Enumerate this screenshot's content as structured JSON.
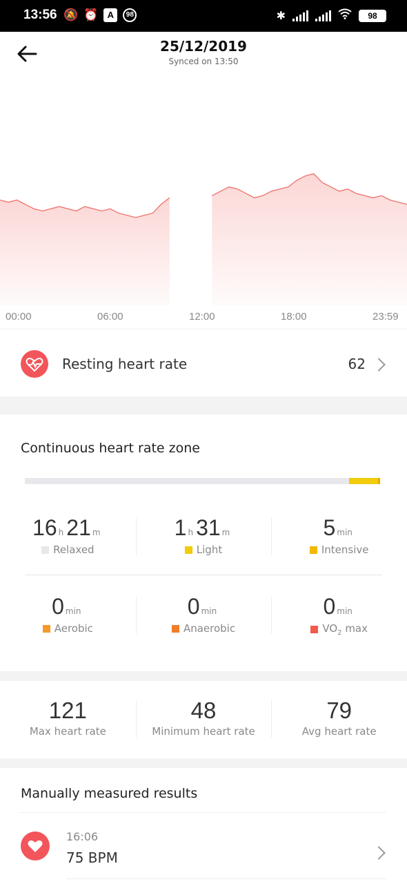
{
  "status_bar": {
    "time": "13:56",
    "notif_badge": "98",
    "battery": "98"
  },
  "header": {
    "title": "25/12/2019",
    "subtitle": "Synced on 13:50"
  },
  "chart_data": {
    "type": "area",
    "x_tick_labels": [
      "00:00",
      "06:00",
      "12:00",
      "18:00",
      "23:59"
    ],
    "color": "#f0706a",
    "x": [
      "00:00",
      "00:30",
      "01:00",
      "01:30",
      "02:00",
      "02:30",
      "03:00",
      "03:30",
      "04:00",
      "04:30",
      "05:00",
      "05:30",
      "06:00",
      "06:30",
      "07:00",
      "07:30",
      "08:00",
      "08:30",
      "09:00",
      "09:30",
      "10:00",
      "10:30",
      "11:00",
      "11:30",
      "12:00",
      "12:30",
      "13:00",
      "13:30",
      "14:00",
      "14:30",
      "15:00",
      "15:30",
      "16:00",
      "16:30",
      "17:00",
      "17:30",
      "18:00",
      "18:30",
      "19:00",
      "19:30",
      "20:00",
      "20:30",
      "21:00",
      "21:30",
      "22:00",
      "22:30",
      "23:00",
      "23:30",
      "23:59"
    ],
    "values": [
      78,
      77,
      78,
      76,
      74,
      73,
      74,
      75,
      74,
      73,
      75,
      74,
      73,
      74,
      72,
      71,
      70,
      71,
      72,
      76,
      79,
      null,
      null,
      null,
      null,
      80,
      82,
      84,
      83,
      81,
      79,
      80,
      82,
      83,
      84,
      87,
      89,
      90,
      86,
      84,
      82,
      83,
      81,
      80,
      79,
      80,
      78,
      77,
      76
    ]
  },
  "resting": {
    "label": "Resting heart rate",
    "value": "62"
  },
  "zone": {
    "title": "Continuous heart rate zone",
    "bar": {
      "light_fraction": 0.083,
      "intensive_fraction": 0.005
    },
    "cells": [
      {
        "n1": "16",
        "u1": "h",
        "n2": "21",
        "u2": "m",
        "label": "Relaxed",
        "color": "#e8e8e8"
      },
      {
        "n1": "1",
        "u1": "h",
        "n2": "31",
        "u2": "m",
        "label": "Light",
        "color": "#f2cc0c"
      },
      {
        "n1": "5",
        "u1": "min",
        "n2": "",
        "u2": "",
        "label": "Intensive",
        "color": "#f2b800"
      },
      {
        "n1": "0",
        "u1": "min",
        "n2": "",
        "u2": "",
        "label": "Aerobic",
        "color": "#f49a2a"
      },
      {
        "n1": "0",
        "u1": "min",
        "n2": "",
        "u2": "",
        "label": "Anaerobic",
        "color": "#f07e2a"
      },
      {
        "n1": "0",
        "u1": "min",
        "n2": "",
        "u2": "",
        "label": "VO",
        "label_sub": "2",
        "label_after": " max",
        "color": "#f25a4a"
      }
    ]
  },
  "stats": [
    {
      "value": "121",
      "label": "Max heart rate"
    },
    {
      "value": "48",
      "label": "Minimum heart rate"
    },
    {
      "value": "79",
      "label": "Avg heart rate"
    }
  ],
  "manual": {
    "title": "Manually measured results",
    "time": "16:06",
    "value": "75  BPM"
  },
  "icons": [
    "back-arrow-icon",
    "heart-rate-icon",
    "chevron-right-icon",
    "heart-icon",
    "wifi-icon",
    "bluetooth-icon",
    "signal-icon",
    "battery-icon",
    "alarm-icon",
    "mute-icon"
  ]
}
